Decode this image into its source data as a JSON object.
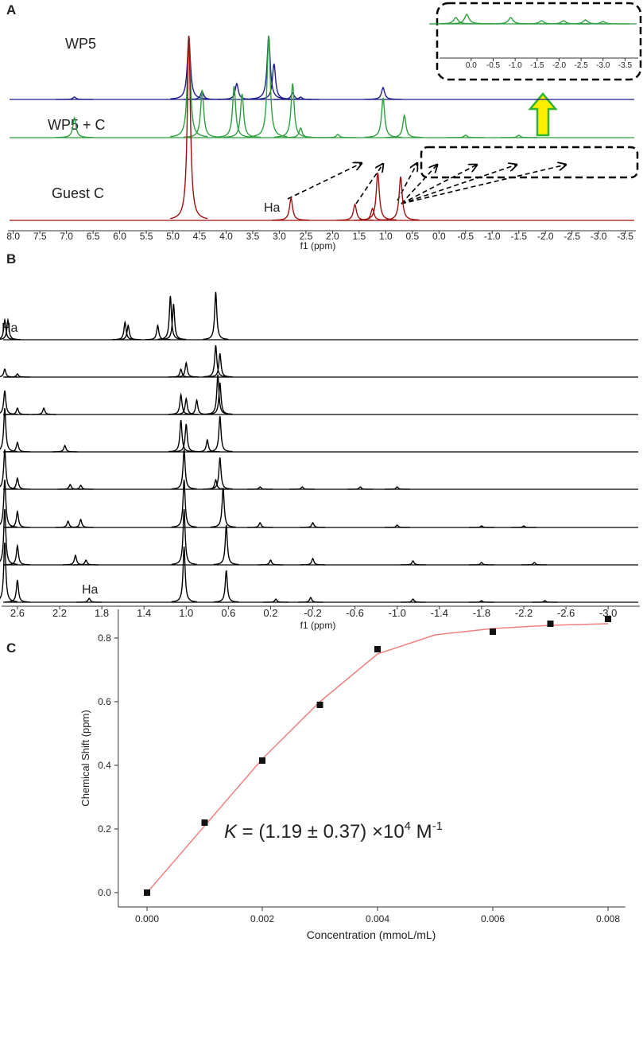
{
  "chart_data": [
    {
      "type": "spectrum",
      "panel_label": "A",
      "xlabel": "f1 (ppm)",
      "xlim": [
        8.1,
        -3.7
      ],
      "xticks": [
        {
          "value": 8,
          "label": "8.0"
        },
        7.5,
        {
          "value": 7,
          "label": "7.0"
        },
        6.5,
        {
          "value": 6,
          "label": "6.0"
        },
        5.5,
        {
          "value": 5,
          "label": "5.0"
        },
        4.5,
        {
          "value": 4,
          "label": "4.0"
        },
        3.5,
        {
          "value": 3,
          "label": "3.0"
        },
        2.5,
        {
          "value": 2,
          "label": "2.0"
        },
        1.5,
        {
          "value": 1,
          "label": "1.0"
        },
        0.5,
        {
          "value": 0,
          "label": "0.0"
        },
        -0.5,
        {
          "value": -1,
          "label": "-1.0"
        },
        -1.5,
        {
          "value": -2,
          "label": "-2.0"
        },
        -2.5,
        {
          "value": -3,
          "label": "-3.0"
        },
        -3.5
      ],
      "series": [
        {
          "name": "WP5",
          "color": "#1c1c8c",
          "x": [
            6.85,
            4.7,
            4.45,
            3.8,
            3.2,
            3.1,
            2.75,
            2.6,
            1.05
          ],
          "values": [
            3,
            80,
            10,
            20,
            80,
            45,
            8,
            3,
            15
          ]
        },
        {
          "name": "WP5 + C",
          "color": "#2e9e3e",
          "x": [
            6.85,
            4.7,
            4.45,
            3.85,
            3.7,
            3.2,
            2.75,
            2.6,
            1.9,
            1.05,
            0.65,
            -0.5,
            -1.5
          ],
          "values": [
            25,
            128,
            60,
            65,
            55,
            128,
            68,
            12,
            4,
            50,
            28,
            3,
            3
          ]
        },
        {
          "name": "Guest C",
          "color": "#a01010",
          "x": [
            4.7,
            2.78,
            1.58,
            1.25,
            1.15,
            0.72
          ],
          "values": [
            232,
            28,
            20,
            15,
            60,
            55
          ]
        }
      ],
      "annotations": [
        "Ha"
      ]
    },
    {
      "type": "spectrum",
      "xlim": [
        0.72,
        -3.8
      ],
      "xticks": [
        {
          "value": 0,
          "label": "0.0"
        },
        -0.5,
        {
          "value": -1,
          "label": "-1.0"
        },
        -1.5,
        {
          "value": -2,
          "label": "-2.0"
        },
        -2.5,
        {
          "value": -3,
          "label": "-3.0"
        },
        -3.5
      ],
      "series": [
        {
          "color": "#2e9e3e",
          "x": [
            0.35,
            0.1,
            -0.9,
            -1.6,
            -2.1,
            -2.6,
            -3.0
          ],
          "values": [
            8,
            12,
            8,
            4,
            4,
            5,
            3
          ]
        }
      ]
    },
    {
      "type": "spectrum",
      "panel_label": "B",
      "xlabel": "f1 (ppm)",
      "xlim": [
        2.75,
        -3.3
      ],
      "xticks": [
        2.6,
        2.2,
        1.8,
        1.4,
        {
          "value": 1,
          "label": "1.0"
        },
        0.6,
        0.2,
        -0.2,
        -0.6,
        {
          "value": -1,
          "label": "-1.0"
        },
        -1.4,
        -1.8,
        -2.2,
        -2.6,
        {
          "value": -3,
          "label": "-3.0"
        }
      ],
      "series": [
        {
          "color": "#000000",
          "x": [
            2.72,
            2.69,
            1.58,
            1.55,
            1.27,
            1.15,
            1.12,
            0.72
          ],
          "values": [
            25,
            25,
            22,
            18,
            18,
            55,
            45,
            60
          ]
        },
        {
          "color": "#000000",
          "x": [
            2.72,
            2.6,
            1.05,
            1.0,
            0.72,
            0.68
          ],
          "values": [
            10,
            4,
            10,
            18,
            40,
            30
          ]
        },
        {
          "color": "#000000",
          "x": [
            2.72,
            2.6,
            2.35,
            1.05,
            1.0,
            0.9,
            0.7,
            0.68
          ],
          "values": [
            30,
            8,
            8,
            25,
            20,
            18,
            50,
            40
          ]
        },
        {
          "color": "#000000",
          "x": [
            2.72,
            2.6,
            2.15,
            1.05,
            1.0,
            0.8,
            0.68
          ],
          "values": [
            55,
            12,
            8,
            40,
            35,
            15,
            45
          ]
        },
        {
          "color": "#000000",
          "x": [
            2.72,
            2.6,
            2.1,
            2.0,
            1.02,
            0.72,
            0.68,
            0.3,
            -0.1,
            -0.65,
            -1.0
          ],
          "values": [
            50,
            14,
            6,
            5,
            50,
            12,
            40,
            3,
            3,
            3,
            3
          ]
        },
        {
          "color": "#000000",
          "x": [
            2.72,
            2.6,
            2.12,
            2.0,
            1.02,
            0.65,
            0.3,
            -0.2,
            -1.0,
            -1.8,
            -2.2
          ],
          "values": [
            60,
            20,
            8,
            10,
            60,
            50,
            6,
            6,
            3,
            2,
            2
          ]
        },
        {
          "color": "#000000",
          "x": [
            2.72,
            2.6,
            2.05,
            1.95,
            1.02,
            0.62,
            0.2,
            -0.2,
            -1.15,
            -1.8,
            -2.3
          ],
          "values": [
            70,
            24,
            12,
            6,
            70,
            50,
            6,
            8,
            5,
            3,
            3
          ]
        },
        {
          "color": "#000000",
          "x": [
            2.72,
            2.6,
            1.92,
            1.02,
            0.62,
            0.15,
            -0.18,
            -1.15,
            -1.8,
            -2.4
          ],
          "values": [
            75,
            28,
            5,
            70,
            40,
            4,
            6,
            4,
            2,
            2
          ]
        }
      ],
      "annotations": [
        "Ha",
        "Ha"
      ]
    },
    {
      "type": "scatter",
      "panel_label": "C",
      "xlabel": "Concentration (mmoL/mL)",
      "ylabel": "Chemical Shift (ppm)",
      "xlim": [
        -0.0005,
        0.0083
      ],
      "ylim": [
        -0.045,
        0.89
      ],
      "xticks": [
        {
          "value": 0,
          "label": "0.000"
        },
        0.002,
        0.004,
        0.006,
        0.008
      ],
      "yticks": [
        {
          "value": 0,
          "label": "0.0"
        },
        0.2,
        0.4,
        0.6,
        0.8
      ],
      "series": [
        {
          "type": "scatter",
          "color": "#111111",
          "x": [
            0,
            0.001,
            0.002,
            0.003,
            0.004,
            0.006,
            0.007,
            0.008
          ],
          "values": [
            0,
            0.22,
            0.415,
            0.59,
            0.765,
            0.82,
            0.845,
            0.86
          ]
        },
        {
          "type": "line",
          "color": "#f08080",
          "x": [
            0,
            0.001,
            0.002,
            0.003,
            0.004,
            0.005,
            0.006,
            0.007,
            0.008
          ],
          "values": [
            0,
            0.21,
            0.42,
            0.6,
            0.75,
            0.81,
            0.83,
            0.84,
            0.845
          ]
        }
      ],
      "annotation": [
        "K",
        " = (1.19 ± 0.37) ",
        "×10",
        "4",
        " M",
        "-1"
      ]
    }
  ]
}
